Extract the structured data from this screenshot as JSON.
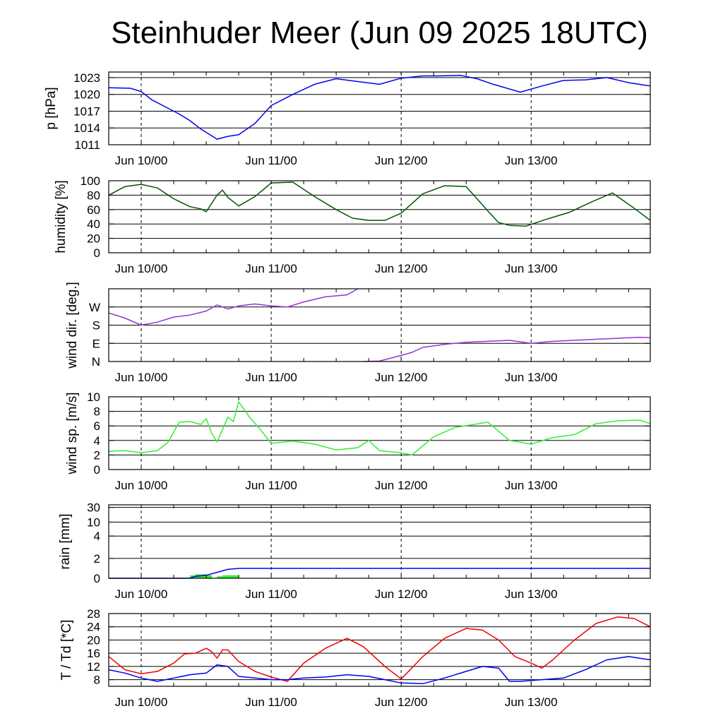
{
  "title": "Steinhuder Meer (Jun 09 2025 18UTC)",
  "time_axis": {
    "start": "2025-06-09T18:00Z",
    "end": "2025-06-13T22:00Z",
    "day_lines": [
      "2025-06-10T00:00Z",
      "2025-06-11T00:00Z",
      "2025-06-12T00:00Z",
      "2025-06-13T00:00Z"
    ],
    "tick_labels": [
      "Jun 10/00",
      "Jun 11/00",
      "Jun 12/00",
      "Jun 13/00"
    ]
  },
  "colors": {
    "pressure": "#0000ee",
    "humidity": "#005500",
    "wind_dir": "#9a30d8",
    "wind_speed": "#33ee33",
    "rain_sum": "#0000ee",
    "rain_bar": "#33ee33",
    "temperature": "#ee0000",
    "dewpoint": "#0000ee"
  },
  "chart_data": [
    {
      "type": "line",
      "ylabel": "p [hPa]",
      "ylim": [
        1011,
        1024
      ],
      "yticks": [
        1011,
        1014,
        1017,
        1020,
        1023
      ],
      "grid": true,
      "series": [
        {
          "key": "pressure",
          "x": [
            "2025-06-09T18:00Z",
            "2025-06-09T22:00Z",
            "2025-06-10T00:00Z",
            "2025-06-10T02:00Z",
            "2025-06-10T05:00Z",
            "2025-06-10T07:00Z",
            "2025-06-10T09:00Z",
            "2025-06-10T11:00Z",
            "2025-06-10T13:00Z",
            "2025-06-10T14:00Z",
            "2025-06-10T16:00Z",
            "2025-06-10T18:00Z",
            "2025-06-10T21:00Z",
            "2025-06-11T00:00Z",
            "2025-06-11T04:00Z",
            "2025-06-11T08:00Z",
            "2025-06-11T12:00Z",
            "2025-06-11T16:00Z",
            "2025-06-11T20:00Z",
            "2025-06-12T00:00Z",
            "2025-06-12T04:00Z",
            "2025-06-12T07:00Z",
            "2025-06-12T11:00Z",
            "2025-06-12T14:00Z",
            "2025-06-12T17:00Z",
            "2025-06-12T22:00Z",
            "2025-06-13T02:00Z",
            "2025-06-13T06:00Z",
            "2025-06-13T10:00Z",
            "2025-06-13T14:00Z",
            "2025-06-13T18:00Z",
            "2025-06-13T22:00Z"
          ],
          "values": [
            1021.2,
            1021.1,
            1020.5,
            1019.0,
            1017.5,
            1016.5,
            1015.3,
            1013.8,
            1012.6,
            1012.0,
            1012.5,
            1012.8,
            1014.8,
            1018.0,
            1020.0,
            1021.8,
            1022.8,
            1022.3,
            1021.8,
            1022.9,
            1023.3,
            1023.3,
            1023.4,
            1022.8,
            1021.8,
            1020.4,
            1021.5,
            1022.5,
            1022.6,
            1023.0,
            1022.1,
            1021.5
          ]
        }
      ]
    },
    {
      "type": "line",
      "ylabel": "humidity [%]",
      "ylim": [
        0,
        100
      ],
      "yticks": [
        0,
        20,
        40,
        60,
        80,
        100
      ],
      "grid": true,
      "series": [
        {
          "key": "humidity",
          "x": [
            "2025-06-09T18:00Z",
            "2025-06-09T21:00Z",
            "2025-06-10T00:00Z",
            "2025-06-10T03:00Z",
            "2025-06-10T06:00Z",
            "2025-06-10T09:00Z",
            "2025-06-10T11:00Z",
            "2025-06-10T12:00Z",
            "2025-06-10T14:00Z",
            "2025-06-10T15:00Z",
            "2025-06-10T16:00Z",
            "2025-06-10T18:00Z",
            "2025-06-10T21:00Z",
            "2025-06-11T00:00Z",
            "2025-06-11T04:00Z",
            "2025-06-11T08:00Z",
            "2025-06-11T12:00Z",
            "2025-06-11T15:00Z",
            "2025-06-11T18:00Z",
            "2025-06-11T21:00Z",
            "2025-06-12T00:00Z",
            "2025-06-12T04:00Z",
            "2025-06-12T08:00Z",
            "2025-06-12T12:00Z",
            "2025-06-12T14:00Z",
            "2025-06-12T16:00Z",
            "2025-06-12T18:00Z",
            "2025-06-12T20:00Z",
            "2025-06-12T23:00Z",
            "2025-06-13T03:00Z",
            "2025-06-13T07:00Z",
            "2025-06-13T11:00Z",
            "2025-06-13T15:00Z",
            "2025-06-13T19:00Z",
            "2025-06-13T22:00Z"
          ],
          "values": [
            80,
            92,
            95,
            90,
            75,
            64,
            61,
            57,
            80,
            87,
            77,
            65,
            78,
            97,
            98,
            78,
            60,
            48,
            45,
            45,
            55,
            82,
            93,
            92,
            75,
            58,
            42,
            38,
            37,
            47,
            56,
            70,
            83,
            62,
            45
          ]
        }
      ]
    },
    {
      "type": "scatter",
      "ylabel": "wind dir. [deg.]",
      "ylim": [
        0,
        360
      ],
      "yticks": [
        0,
        90,
        180,
        270
      ],
      "ytick_labels": [
        "N",
        "E",
        "S",
        "W"
      ],
      "series": [
        {
          "key": "wind_dir",
          "x": [
            "2025-06-09T18:00Z",
            "2025-06-09T21:00Z",
            "2025-06-10T00:00Z",
            "2025-06-10T03:00Z",
            "2025-06-10T06:00Z",
            "2025-06-10T09:00Z",
            "2025-06-10T12:00Z",
            "2025-06-10T14:00Z",
            "2025-06-10T16:00Z",
            "2025-06-10T18:00Z",
            "2025-06-10T21:00Z",
            "2025-06-11T00:00Z",
            "2025-06-11T03:00Z",
            "2025-06-11T06:00Z",
            "2025-06-11T10:00Z",
            "2025-06-11T14:00Z",
            "2025-06-11T16:00Z",
            "2025-06-11T17:00Z",
            "2025-06-11T20:00Z",
            "2025-06-12T00:00Z",
            "2025-06-12T02:00Z",
            "2025-06-12T04:00Z",
            "2025-06-12T08:00Z",
            "2025-06-12T12:00Z",
            "2025-06-12T16:00Z",
            "2025-06-12T20:00Z",
            "2025-06-13T00:00Z",
            "2025-06-13T04:00Z",
            "2025-06-13T08:00Z",
            "2025-06-13T12:00Z",
            "2025-06-13T16:00Z",
            "2025-06-13T20:00Z",
            "2025-06-13T22:00Z"
          ],
          "values": [
            240,
            215,
            180,
            195,
            220,
            230,
            250,
            280,
            260,
            275,
            285,
            275,
            270,
            295,
            320,
            330,
            360,
            0,
            2,
            30,
            45,
            70,
            85,
            95,
            100,
            105,
            90,
            100,
            105,
            110,
            115,
            120,
            118
          ]
        }
      ]
    },
    {
      "type": "line",
      "ylabel": "wind sp. [m/s]",
      "ylim": [
        0,
        10
      ],
      "yticks": [
        0,
        2,
        4,
        6,
        8,
        10
      ],
      "series": [
        {
          "key": "wind_speed",
          "x": [
            "2025-06-09T18:00Z",
            "2025-06-09T21:00Z",
            "2025-06-10T00:00Z",
            "2025-06-10T03:00Z",
            "2025-06-10T05:00Z",
            "2025-06-10T07:00Z",
            "2025-06-10T09:00Z",
            "2025-06-10T11:00Z",
            "2025-06-10T12:00Z",
            "2025-06-10T13:00Z",
            "2025-06-10T14:00Z",
            "2025-06-10T16:00Z",
            "2025-06-10T17:00Z",
            "2025-06-10T18:00Z",
            "2025-06-10T20:00Z",
            "2025-06-10T22:00Z",
            "2025-06-11T00:00Z",
            "2025-06-11T04:00Z",
            "2025-06-11T08:00Z",
            "2025-06-11T12:00Z",
            "2025-06-11T16:00Z",
            "2025-06-11T18:00Z",
            "2025-06-11T20:00Z",
            "2025-06-12T00:00Z",
            "2025-06-12T02:00Z",
            "2025-06-12T06:00Z",
            "2025-06-12T10:00Z",
            "2025-06-12T16:00Z",
            "2025-06-12T20:00Z",
            "2025-06-13T00:00Z",
            "2025-06-13T04:00Z",
            "2025-06-13T08:00Z",
            "2025-06-13T12:00Z",
            "2025-06-13T16:00Z",
            "2025-06-13T20:00Z",
            "2025-06-13T22:00Z"
          ],
          "values": [
            2.5,
            2.6,
            2.3,
            2.6,
            3.8,
            6.5,
            6.6,
            6.2,
            7.0,
            5.0,
            3.8,
            7.2,
            6.6,
            9.3,
            7.2,
            5.5,
            3.6,
            3.9,
            3.5,
            2.7,
            3.0,
            4.0,
            2.6,
            2.3,
            2.0,
            4.5,
            5.8,
            6.5,
            4.0,
            3.5,
            4.4,
            4.8,
            6.3,
            6.7,
            6.8,
            6.3
          ]
        }
      ]
    },
    {
      "type": "bar",
      "ylabel": "rain [mm]",
      "ylim": [
        0,
        30
      ],
      "yticks": [
        0,
        2,
        4,
        10,
        30
      ],
      "scale": "nonlinear",
      "bars": {
        "key": "rain_bar",
        "x": [
          "2025-06-10T09:00Z",
          "2025-06-10T10:00Z",
          "2025-06-10T11:00Z",
          "2025-06-10T12:00Z",
          "2025-06-10T14:00Z",
          "2025-06-10T15:00Z",
          "2025-06-10T16:00Z",
          "2025-06-10T17:00Z"
        ],
        "values": [
          0.3,
          0.4,
          0.4,
          0.3,
          0.2,
          0.3,
          0.3,
          0.3
        ]
      },
      "series": [
        {
          "key": "rain_sum",
          "x": [
            "2025-06-09T18:00Z",
            "2025-06-10T09:00Z",
            "2025-06-10T10:00Z",
            "2025-06-10T12:00Z",
            "2025-06-10T14:00Z",
            "2025-06-10T16:00Z",
            "2025-06-10T18:00Z",
            "2025-06-13T22:00Z"
          ],
          "values": [
            0,
            0,
            0.2,
            0.3,
            0.6,
            0.9,
            1.0,
            1.0
          ]
        }
      ]
    },
    {
      "type": "line",
      "ylabel": "T / Td [*C]",
      "ylim": [
        6,
        28
      ],
      "yticks": [
        8,
        12,
        16,
        20,
        24,
        28
      ],
      "grid": true,
      "series": [
        {
          "key": "temperature",
          "x": [
            "2025-06-09T18:00Z",
            "2025-06-09T21:00Z",
            "2025-06-10T00:00Z",
            "2025-06-10T03:00Z",
            "2025-06-10T06:00Z",
            "2025-06-10T08:00Z",
            "2025-06-10T10:00Z",
            "2025-06-10T12:00Z",
            "2025-06-10T13:00Z",
            "2025-06-10T14:00Z",
            "2025-06-10T15:00Z",
            "2025-06-10T16:00Z",
            "2025-06-10T18:00Z",
            "2025-06-10T21:00Z",
            "2025-06-11T00:00Z",
            "2025-06-11T03:00Z",
            "2025-06-11T06:00Z",
            "2025-06-11T10:00Z",
            "2025-06-11T14:00Z",
            "2025-06-11T17:00Z",
            "2025-06-11T21:00Z",
            "2025-06-12T00:00Z",
            "2025-06-12T04:00Z",
            "2025-06-12T08:00Z",
            "2025-06-12T12:00Z",
            "2025-06-12T15:00Z",
            "2025-06-12T18:00Z",
            "2025-06-12T21:00Z",
            "2025-06-13T00:00Z",
            "2025-06-13T02:00Z",
            "2025-06-13T04:00Z",
            "2025-06-13T08:00Z",
            "2025-06-13T12:00Z",
            "2025-06-13T16:00Z",
            "2025-06-13T19:00Z",
            "2025-06-13T22:00Z"
          ],
          "values": [
            15,
            11,
            9.8,
            10.5,
            13,
            15.8,
            16,
            17.5,
            16.5,
            14.5,
            17,
            17,
            13.5,
            10.5,
            8.8,
            7.5,
            13,
            17.5,
            20.5,
            18,
            12,
            8.2,
            15,
            20.5,
            23.5,
            23,
            20,
            15,
            13,
            11.5,
            14,
            20,
            25,
            27,
            26.5,
            24
          ]
        },
        {
          "key": "dewpoint",
          "x": [
            "2025-06-09T18:00Z",
            "2025-06-09T21:00Z",
            "2025-06-10T00:00Z",
            "2025-06-10T03:00Z",
            "2025-06-10T06:00Z",
            "2025-06-10T09:00Z",
            "2025-06-10T12:00Z",
            "2025-06-10T14:00Z",
            "2025-06-10T16:00Z",
            "2025-06-10T18:00Z",
            "2025-06-10T21:00Z",
            "2025-06-11T00:00Z",
            "2025-06-11T03:00Z",
            "2025-06-11T06:00Z",
            "2025-06-11T10:00Z",
            "2025-06-11T14:00Z",
            "2025-06-11T18:00Z",
            "2025-06-11T21:00Z",
            "2025-06-12T00:00Z",
            "2025-06-12T04:00Z",
            "2025-06-12T08:00Z",
            "2025-06-12T12:00Z",
            "2025-06-12T15:00Z",
            "2025-06-12T18:00Z",
            "2025-06-12T20:00Z",
            "2025-06-12T22:00Z",
            "2025-06-13T02:00Z",
            "2025-06-13T06:00Z",
            "2025-06-13T10:00Z",
            "2025-06-13T14:00Z",
            "2025-06-13T18:00Z",
            "2025-06-13T22:00Z"
          ],
          "values": [
            11,
            10,
            8.5,
            7.5,
            8.5,
            9.5,
            10,
            12.5,
            12,
            9,
            8.5,
            8,
            8,
            8.5,
            8.8,
            9.5,
            9,
            8,
            7,
            6.8,
            8.5,
            10.5,
            12,
            11.5,
            7.5,
            7.5,
            8,
            8.5,
            11,
            14,
            15,
            14
          ]
        }
      ]
    }
  ]
}
